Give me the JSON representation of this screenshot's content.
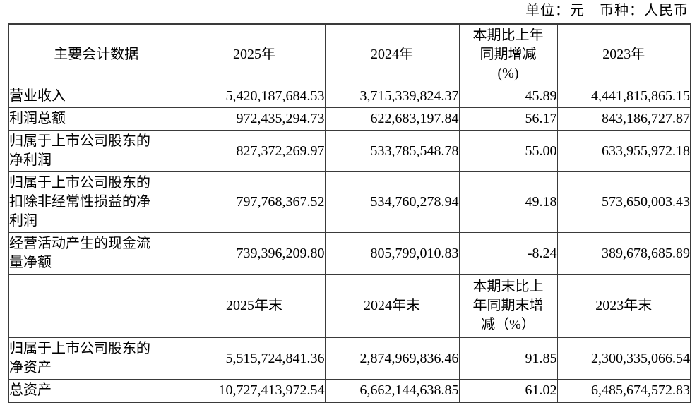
{
  "meta": {
    "unit_label": "单位：元　币种：人民币"
  },
  "table": {
    "sections": [
      {
        "header": {
          "label": "主要会计数据",
          "cols": [
            "2025年",
            "2024年",
            "本期比上年\n同期增减\n(%)",
            "2023年"
          ]
        },
        "rows": [
          {
            "label": "营业收入",
            "values": [
              "5,420,187,684.53",
              "3,715,339,824.37",
              "45.89",
              "4,441,815,865.15"
            ]
          },
          {
            "label": "利润总额",
            "values": [
              "972,435,294.73",
              "622,683,197.84",
              "56.17",
              "843,186,727.87"
            ]
          },
          {
            "label": "归属于上市公司股东的\n净利润",
            "values": [
              "827,372,269.97",
              "533,785,548.78",
              "55.00",
              "633,955,972.18"
            ]
          },
          {
            "label": "归属于上市公司股东的\n扣除非经常性损益的净\n利润",
            "values": [
              "797,768,367.52",
              "534,760,278.94",
              "49.18",
              "573,650,003.43"
            ]
          },
          {
            "label": "经营活动产生的现金流\n量净额",
            "values": [
              "739,396,209.80",
              "805,799,010.83",
              "-8.24",
              "389,678,685.89"
            ]
          }
        ]
      },
      {
        "header": {
          "label": "",
          "cols": [
            "2025年末",
            "2024年末",
            "本期末比上\n年同期末增\n减（%）",
            "2023年末"
          ]
        },
        "rows": [
          {
            "label": "归属于上市公司股东的\n净资产",
            "values": [
              "5,515,724,841.36",
              "2,874,969,836.46",
              "91.85",
              "2,300,335,066.54"
            ]
          },
          {
            "label": "总资产",
            "values": [
              "10,727,413,972.54",
              "6,662,144,638.85",
              "61.02",
              "6,485,674,572.83"
            ]
          }
        ]
      }
    ]
  }
}
